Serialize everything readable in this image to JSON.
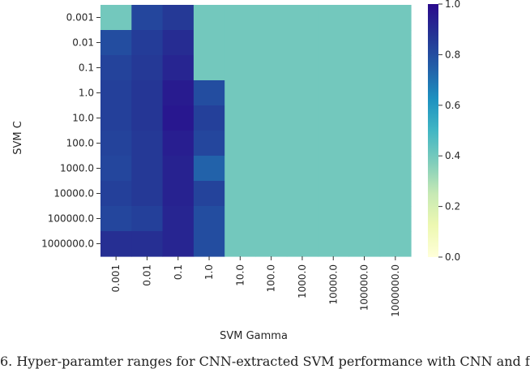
{
  "chart_data": {
    "type": "heatmap",
    "xlabel": "SVM Gamma",
    "ylabel": "SVM C",
    "x_categories": [
      "0.001",
      "0.01",
      "0.1",
      "1.0",
      "10.0",
      "100.0",
      "1000.0",
      "10000.0",
      "100000.0",
      "1000000.0"
    ],
    "y_categories": [
      "0.001",
      "0.01",
      "0.1",
      "1.0",
      "10.0",
      "100.0",
      "1000.0",
      "10000.0",
      "100000.0",
      "1000000.0"
    ],
    "values": [
      [
        0.4,
        0.82,
        0.86,
        0.4,
        0.4,
        0.4,
        0.4,
        0.4,
        0.4,
        0.4
      ],
      [
        0.8,
        0.85,
        0.9,
        0.4,
        0.4,
        0.4,
        0.4,
        0.4,
        0.4,
        0.4
      ],
      [
        0.83,
        0.86,
        0.92,
        0.4,
        0.4,
        0.4,
        0.4,
        0.4,
        0.4,
        0.4
      ],
      [
        0.84,
        0.87,
        0.95,
        0.8,
        0.4,
        0.4,
        0.4,
        0.4,
        0.4,
        0.4
      ],
      [
        0.84,
        0.87,
        0.96,
        0.84,
        0.4,
        0.4,
        0.4,
        0.4,
        0.4,
        0.4
      ],
      [
        0.83,
        0.86,
        0.94,
        0.82,
        0.4,
        0.4,
        0.4,
        0.4,
        0.4,
        0.4
      ],
      [
        0.82,
        0.86,
        0.93,
        0.74,
        0.4,
        0.4,
        0.4,
        0.4,
        0.4,
        0.4
      ],
      [
        0.84,
        0.86,
        0.93,
        0.83,
        0.4,
        0.4,
        0.4,
        0.4,
        0.4,
        0.4
      ],
      [
        0.82,
        0.84,
        0.92,
        0.8,
        0.4,
        0.4,
        0.4,
        0.4,
        0.4,
        0.4
      ],
      [
        0.89,
        0.89,
        0.92,
        0.8,
        0.4,
        0.4,
        0.4,
        0.4,
        0.4,
        0.4
      ]
    ],
    "colorbar": {
      "range": [
        0.0,
        1.0
      ],
      "ticks": [
        "0.0",
        "0.2",
        "0.4",
        "0.6",
        "0.8",
        "1.0"
      ],
      "colormap": "YlGnBu",
      "colors": [
        "#ffffd9",
        "#edf8b1",
        "#c7e9b4",
        "#7fcdbb",
        "#41b6c4",
        "#1d91c0",
        "#225ea8",
        "#253494",
        "#2a0a8c"
      ]
    },
    "grid": false
  },
  "caption": "6.   Hyper-paramter ranges for CNN-extracted SVM performance with CNN and f"
}
